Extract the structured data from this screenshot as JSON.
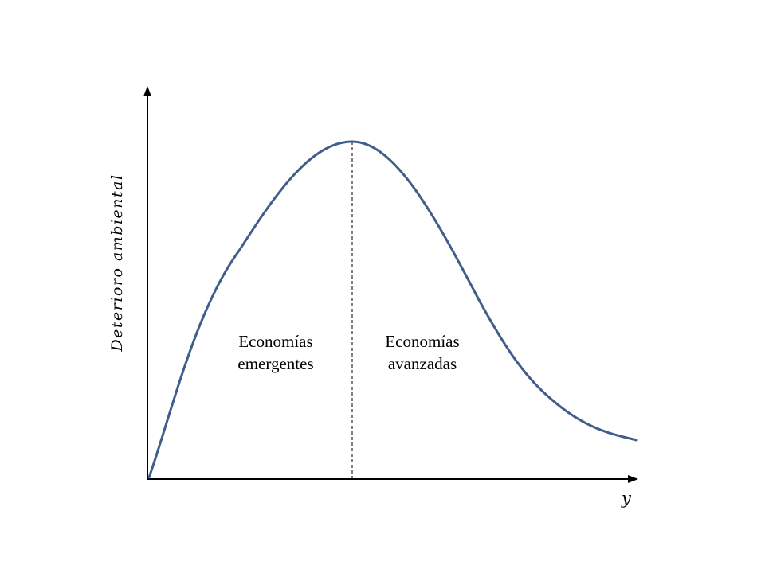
{
  "diagram": {
    "y_axis_label": "Deterioro ambiental",
    "x_axis_label": "y",
    "curve_color": "#3f5f8a",
    "regions": {
      "left": {
        "line1": "Economías",
        "line2": "emergentes"
      },
      "right": {
        "line1": "Economías",
        "line2": "avanzadas"
      }
    }
  }
}
